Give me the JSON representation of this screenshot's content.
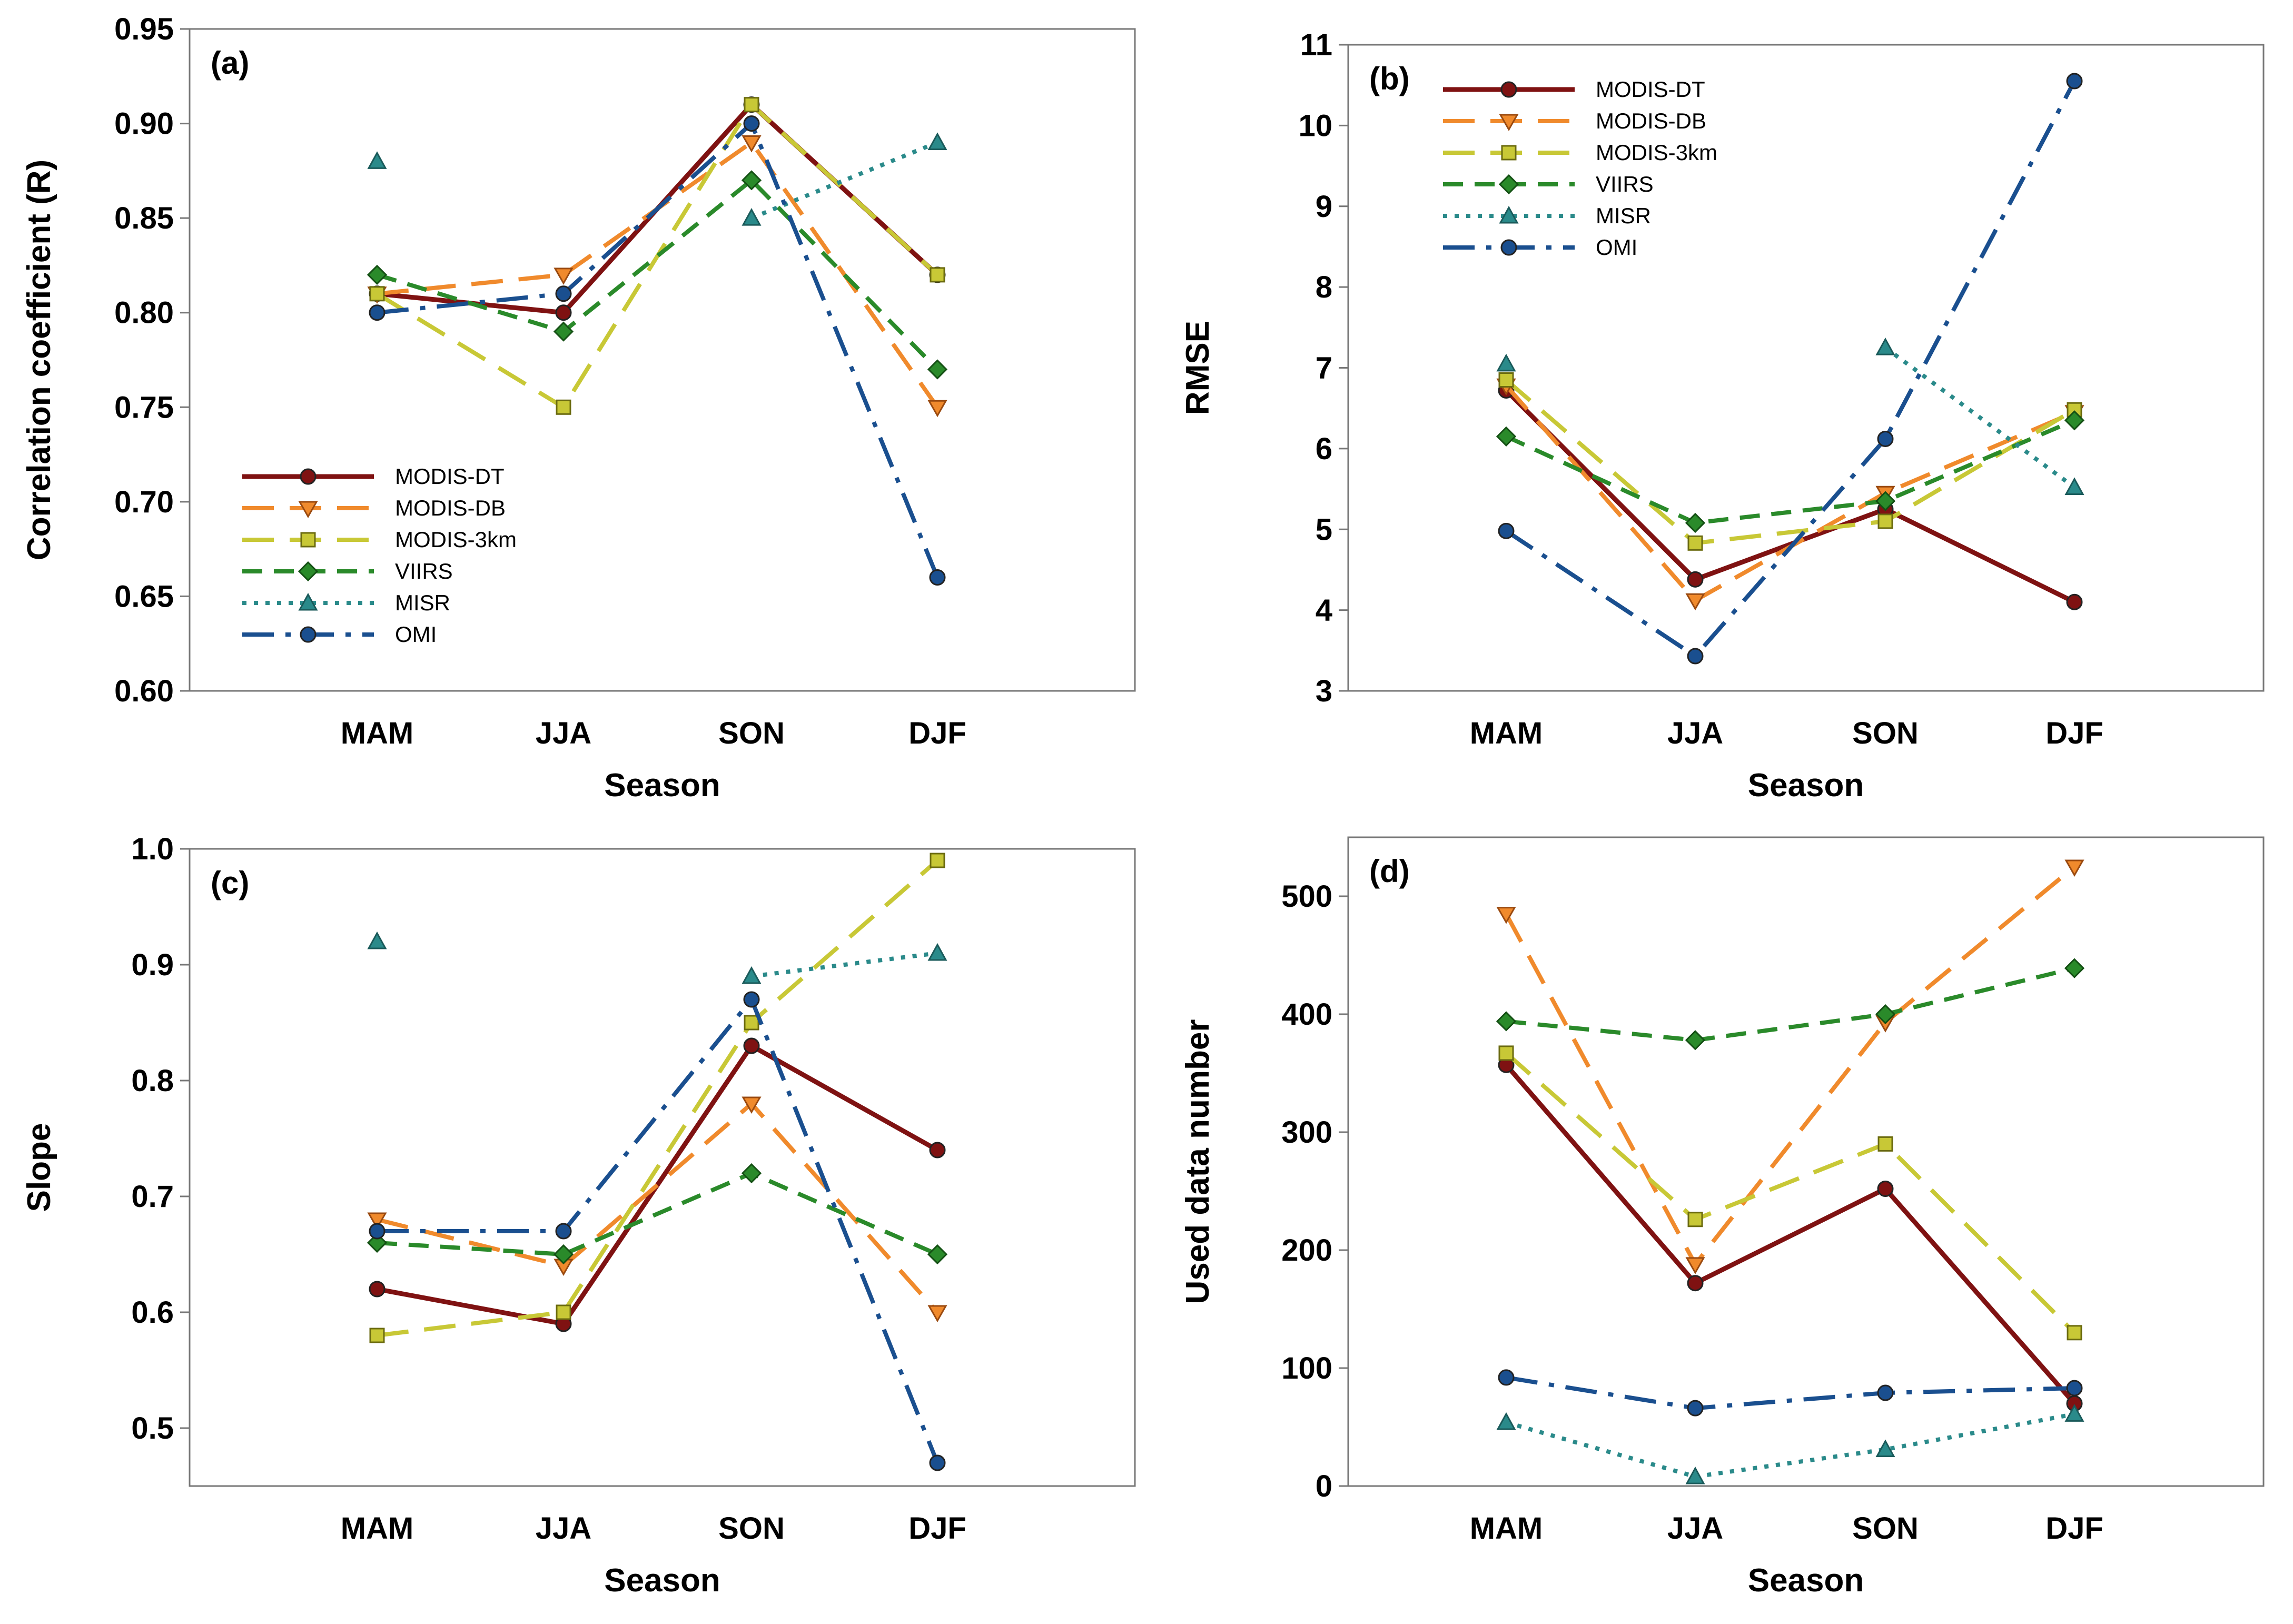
{
  "colors": {
    "MODIS-DT": "#7f1212",
    "MODIS-DB": "#f08a2c",
    "MODIS-3km": "#c8c836",
    "VIIRS": "#2a8a2a",
    "MISR": "#2a8a8a",
    "OMI": "#1a4f8f"
  },
  "chart_data": [
    {
      "id": "a",
      "type": "line",
      "panel_label": "(a)",
      "xlabel": "Season",
      "ylabel": "Correlation coefficient (R)",
      "categories": [
        "MAM",
        "JJA",
        "SON",
        "DJF"
      ],
      "ylim": [
        0.6,
        0.95
      ],
      "yticks": [
        "0.60",
        "0.65",
        "0.70",
        "0.75",
        "0.80",
        "0.85",
        "0.90",
        "0.95"
      ],
      "legend": "lower-left",
      "series": [
        {
          "name": "MODIS-DT",
          "values": [
            0.81,
            0.8,
            0.91,
            0.82
          ]
        },
        {
          "name": "MODIS-DB",
          "values": [
            0.81,
            0.82,
            0.89,
            0.75
          ]
        },
        {
          "name": "MODIS-3km",
          "values": [
            0.81,
            0.75,
            0.91,
            0.82
          ]
        },
        {
          "name": "VIIRS",
          "values": [
            0.82,
            0.79,
            0.87,
            0.77
          ]
        },
        {
          "name": "MISR",
          "values": [
            0.88,
            null,
            0.85,
            0.89
          ]
        },
        {
          "name": "OMI",
          "values": [
            0.8,
            0.81,
            0.9,
            0.66
          ]
        }
      ]
    },
    {
      "id": "b",
      "type": "line",
      "panel_label": "(b)",
      "xlabel": "Season",
      "ylabel": "RMSE",
      "categories": [
        "MAM",
        "JJA",
        "SON",
        "DJF"
      ],
      "ylim": [
        3,
        11
      ],
      "yticks": [
        "3",
        "4",
        "5",
        "6",
        "7",
        "8",
        "9",
        "10",
        "11"
      ],
      "legend": "top-left",
      "series": [
        {
          "name": "MODIS-DT",
          "values": [
            6.72,
            4.38,
            5.25,
            4.1
          ]
        },
        {
          "name": "MODIS-DB",
          "values": [
            6.78,
            4.12,
            5.45,
            6.45
          ]
        },
        {
          "name": "MODIS-3km",
          "values": [
            6.85,
            4.83,
            5.1,
            6.48
          ]
        },
        {
          "name": "VIIRS",
          "values": [
            6.15,
            5.08,
            5.35,
            6.35
          ]
        },
        {
          "name": "MISR",
          "values": [
            7.05,
            null,
            7.25,
            5.52
          ]
        },
        {
          "name": "OMI",
          "values": [
            4.98,
            3.43,
            6.12,
            10.55
          ]
        }
      ]
    },
    {
      "id": "c",
      "type": "line",
      "panel_label": "(c)",
      "xlabel": "Season",
      "ylabel": "Slope",
      "categories": [
        "MAM",
        "JJA",
        "SON",
        "DJF"
      ],
      "ylim": [
        0.45,
        1.0
      ],
      "yticks": [
        "0.5",
        "0.6",
        "0.7",
        "0.8",
        "0.9",
        "1.0"
      ],
      "legend": "none",
      "series": [
        {
          "name": "MODIS-DT",
          "values": [
            0.62,
            0.59,
            0.83,
            0.74
          ]
        },
        {
          "name": "MODIS-DB",
          "values": [
            0.68,
            0.64,
            0.78,
            0.6
          ]
        },
        {
          "name": "MODIS-3km",
          "values": [
            0.58,
            0.6,
            0.85,
            0.99
          ]
        },
        {
          "name": "VIIRS",
          "values": [
            0.66,
            0.65,
            0.72,
            0.65
          ]
        },
        {
          "name": "MISR",
          "values": [
            0.92,
            null,
            0.89,
            0.91
          ]
        },
        {
          "name": "OMI",
          "values": [
            0.67,
            0.67,
            0.87,
            0.47
          ]
        }
      ]
    },
    {
      "id": "d",
      "type": "line",
      "panel_label": "(d)",
      "xlabel": "Season",
      "ylabel": "Used data number",
      "categories": [
        "MAM",
        "JJA",
        "SON",
        "DJF"
      ],
      "ylim": [
        0,
        550
      ],
      "yticks": [
        "0",
        "100",
        "200",
        "300",
        "400",
        "500"
      ],
      "legend": "none",
      "series": [
        {
          "name": "MODIS-DT",
          "values": [
            357,
            172,
            252,
            70
          ]
        },
        {
          "name": "MODIS-DB",
          "values": [
            485,
            188,
            393,
            525
          ]
        },
        {
          "name": "MODIS-3km",
          "values": [
            367,
            226,
            290,
            130
          ]
        },
        {
          "name": "VIIRS",
          "values": [
            394,
            378,
            400,
            439
          ]
        },
        {
          "name": "MISR",
          "values": [
            54,
            8,
            31,
            61
          ]
        },
        {
          "name": "OMI",
          "values": [
            92,
            66,
            79,
            83
          ]
        }
      ]
    }
  ]
}
